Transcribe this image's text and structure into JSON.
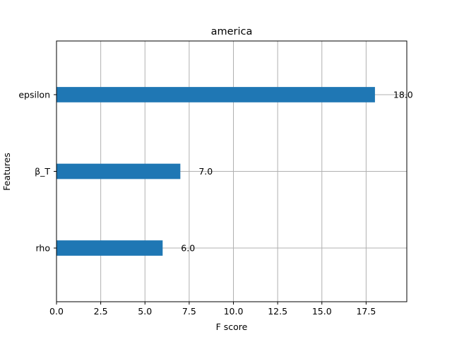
{
  "chart_data": {
    "type": "bar",
    "orientation": "horizontal",
    "title": "america",
    "xlabel": "F score",
    "ylabel": "Features",
    "categories": [
      "rho",
      "β_T",
      "epsilon"
    ],
    "values": [
      6.0,
      7.0,
      18.0
    ],
    "value_labels": [
      "6.0",
      "7.0",
      "18.0"
    ],
    "xlim": [
      0,
      19.8
    ],
    "xticks": [
      0.0,
      2.5,
      5.0,
      7.5,
      10.0,
      12.5,
      15.0,
      17.5
    ],
    "xtick_labels": [
      "0.0",
      "2.5",
      "5.0",
      "7.5",
      "10.0",
      "12.5",
      "15.0",
      "17.5"
    ],
    "grid": true,
    "legend": "none",
    "bar_color": "#1f77b4",
    "grid_color": "#b0b0b0"
  }
}
